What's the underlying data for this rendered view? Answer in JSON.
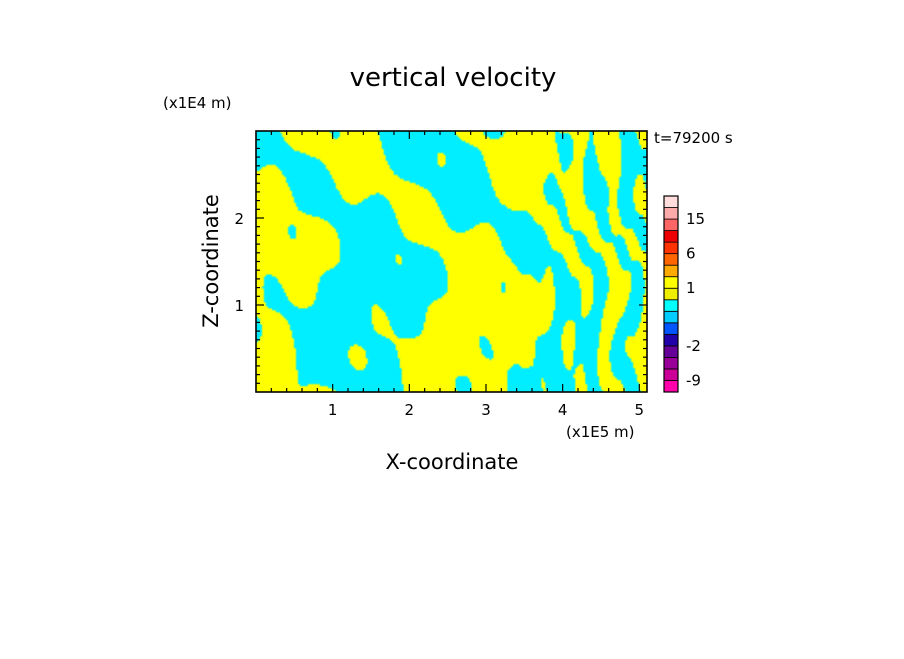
{
  "chart_data": {
    "type": "heatmap",
    "title": "vertical velocity",
    "xlabel": "X-coordinate",
    "ylabel": "Z-coordinate",
    "x_unit": "(x1E5 m)",
    "y_unit": "(x1E4 m)",
    "time_label": "t=79200 s",
    "xlim": [
      0,
      5.1
    ],
    "ylim": [
      0,
      3.0
    ],
    "x_ticks": [
      1,
      2,
      3,
      4,
      5
    ],
    "y_ticks": [
      1,
      2
    ],
    "x_tick_labels": [
      "1",
      "2",
      "3",
      "4",
      "5"
    ],
    "y_tick_labels": [
      "1",
      "2"
    ],
    "field_colors": {
      "positive": "#ffff00",
      "negative": "#00eeff"
    },
    "field_summary": "alternating positive (yellow) and negative (cyan) vertical velocity bands; broad irregular patches aloft and narrow near-vertical streaks at low levels for x > 3.4",
    "colorbar": {
      "levels": [
        -12,
        -9,
        -6,
        -4,
        -2,
        -1,
        -0.5,
        0,
        0.5,
        1,
        2,
        4,
        6,
        9,
        12,
        15,
        18,
        21
      ],
      "colors": [
        "#ff00aa",
        "#cc0099",
        "#990099",
        "#660099",
        "#2200aa",
        "#0055ff",
        "#00ccff",
        "#00ffff",
        "#eeee00",
        "#ffff00",
        "#ffaa00",
        "#ff6600",
        "#ff3300",
        "#ee0000",
        "#ff6666",
        "#ffaaaa",
        "#ffdddd"
      ],
      "labels": [
        "-9",
        "-2",
        "1",
        "6",
        "15"
      ],
      "label_values": [
        -9,
        -2,
        1,
        6,
        15
      ]
    }
  }
}
